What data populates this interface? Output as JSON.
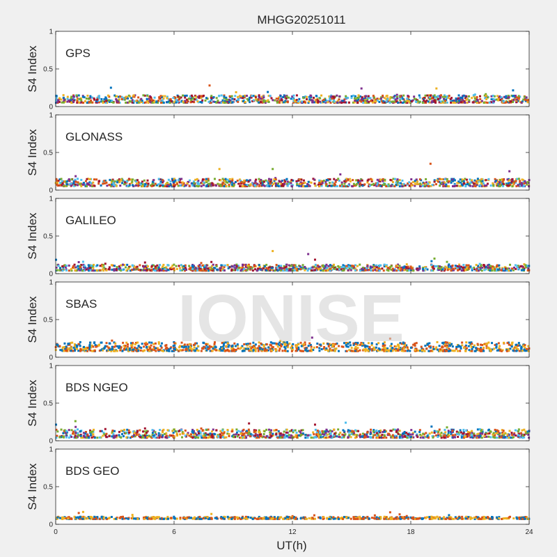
{
  "figure": {
    "title": "MHGG20251011",
    "xlabel": "UT(h)",
    "ylabel": "S4 Index",
    "watermark": "IONISE",
    "background": "#f0f0f0",
    "axes_background": "#ffffff"
  },
  "palette": [
    "#0072BD",
    "#D95319",
    "#EDB120",
    "#7E2F8E",
    "#77AC30",
    "#4DBEEE",
    "#A2142F"
  ],
  "chart_data": {
    "type": "scatter",
    "title": "MHGG20251011",
    "xlabel": "UT(h)",
    "xlim": [
      0,
      24
    ],
    "xticks": [
      0,
      6,
      12,
      18,
      24
    ],
    "grid": false,
    "panels": [
      {
        "name": "GPS",
        "ylabel": "S4 Index",
        "ylim": [
          0,
          1
        ],
        "yticks": [
          "0",
          "0.5",
          "1"
        ],
        "typical_s4": [
          0.05,
          0.15
        ],
        "peaks": [
          {
            "x": 2.8,
            "y": 0.25
          },
          {
            "x": 7.8,
            "y": 0.28
          },
          {
            "x": 19.3,
            "y": 0.24
          },
          {
            "x": 15.5,
            "y": 0.24
          }
        ]
      },
      {
        "name": "GLONASS",
        "ylabel": "S4 Index",
        "ylim": [
          0,
          1
        ],
        "yticks": [
          "0",
          "0.5",
          "1"
        ],
        "typical_s4": [
          0.05,
          0.15
        ],
        "peaks": [
          {
            "x": 19.0,
            "y": 0.35
          },
          {
            "x": 8.3,
            "y": 0.28
          },
          {
            "x": 23.0,
            "y": 0.25
          },
          {
            "x": 11.0,
            "y": 0.28
          }
        ]
      },
      {
        "name": "GALILEO",
        "ylabel": "S4 Index",
        "ylim": [
          0,
          1
        ],
        "yticks": [
          "0",
          "0.5",
          "1"
        ],
        "typical_s4": [
          0.04,
          0.12
        ],
        "peaks": [
          {
            "x": 11.0,
            "y": 0.3
          },
          {
            "x": 12.8,
            "y": 0.26
          },
          {
            "x": 19.2,
            "y": 0.2
          }
        ]
      },
      {
        "name": "SBAS",
        "ylabel": "S4 Index",
        "ylim": [
          0,
          1
        ],
        "yticks": [
          "0",
          "0.5",
          "1"
        ],
        "typical_s4": [
          0.08,
          0.2
        ],
        "peaks": [
          {
            "x": 13.0,
            "y": 0.26
          }
        ]
      },
      {
        "name": "BDS NGEO",
        "ylabel": "S4 Index",
        "ylim": [
          0,
          1
        ],
        "yticks": [
          "0",
          "0.5",
          "1"
        ],
        "typical_s4": [
          0.04,
          0.15
        ],
        "peaks": [
          {
            "x": 1.0,
            "y": 0.26
          },
          {
            "x": 14.7,
            "y": 0.24
          },
          {
            "x": 9.8,
            "y": 0.23
          }
        ]
      },
      {
        "name": "BDS GEO",
        "ylabel": "S4 Index",
        "ylim": [
          0,
          1
        ],
        "yticks": [
          "0",
          "0.5",
          "1"
        ],
        "typical_s4": [
          0.07,
          0.1
        ],
        "peaks": []
      }
    ]
  }
}
